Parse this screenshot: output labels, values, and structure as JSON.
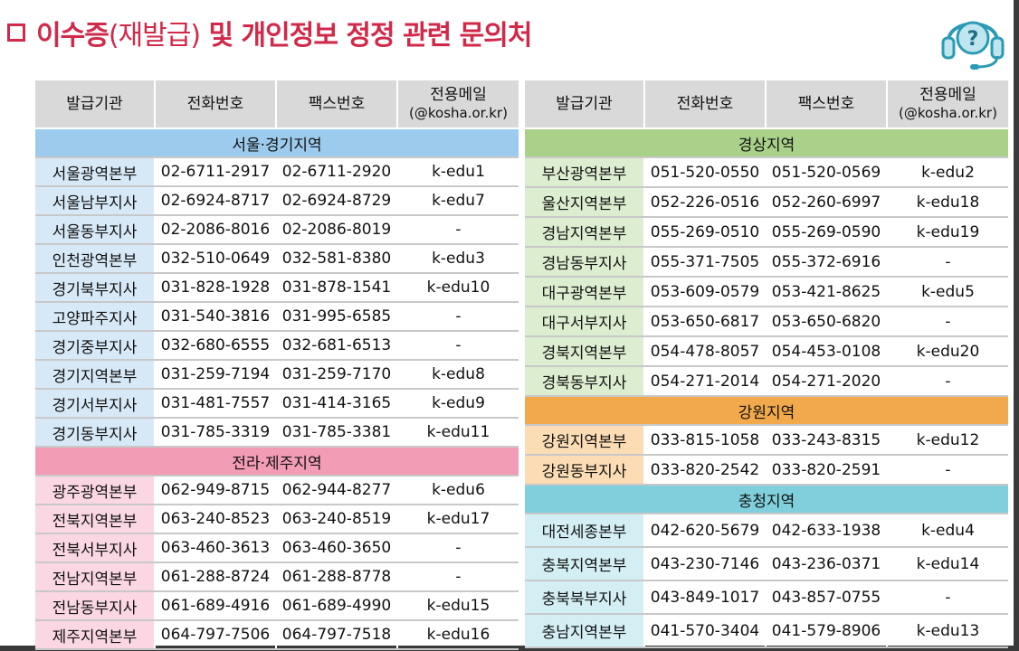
{
  "title": {
    "prefix": "이수증",
    "paren": "(재발급)",
    "suffix": " 및 개인정보 정정 관련 문의처"
  },
  "icon": "headset-help-icon",
  "headers": {
    "org": "발급기관",
    "phone": "전화번호",
    "fax": "팩스번호",
    "email_line1": "전용메일",
    "email_line2": "(@kosha.or.kr)"
  },
  "left": {
    "seoul": {
      "name": "서울·경기지역",
      "rows": [
        {
          "org": "서울광역본부",
          "phone": "02-6711-2917",
          "fax": "02-6711-2920",
          "email": "k-edu1"
        },
        {
          "org": "서울남부지사",
          "phone": "02-6924-8717",
          "fax": "02-6924-8729",
          "email": "k-edu7"
        },
        {
          "org": "서울동부지사",
          "phone": "02-2086-8016",
          "fax": "02-2086-8019",
          "email": "-"
        },
        {
          "org": "인천광역본부",
          "phone": "032-510-0649",
          "fax": "032-581-8380",
          "email": "k-edu3"
        },
        {
          "org": "경기북부지사",
          "phone": "031-828-1928",
          "fax": "031-878-1541",
          "email": "k-edu10"
        },
        {
          "org": "고양파주지사",
          "phone": "031-540-3816",
          "fax": "031-995-6585",
          "email": "-"
        },
        {
          "org": "경기중부지사",
          "phone": "032-680-6555",
          "fax": "032-681-6513",
          "email": "-"
        },
        {
          "org": "경기지역본부",
          "phone": "031-259-7194",
          "fax": "031-259-7170",
          "email": "k-edu8"
        },
        {
          "org": "경기서부지사",
          "phone": "031-481-7557",
          "fax": "031-414-3165",
          "email": "k-edu9"
        },
        {
          "org": "경기동부지사",
          "phone": "031-785-3319",
          "fax": "031-785-3381",
          "email": "k-edu11"
        }
      ]
    },
    "jeolla": {
      "name": "전라·제주지역",
      "rows": [
        {
          "org": "광주광역본부",
          "phone": "062-949-8715",
          "fax": "062-944-8277",
          "email": "k-edu6"
        },
        {
          "org": "전북지역본부",
          "phone": "063-240-8523",
          "fax": "063-240-8519",
          "email": "k-edu17"
        },
        {
          "org": "전북서부지사",
          "phone": "063-460-3613",
          "fax": "063-460-3650",
          "email": "-"
        },
        {
          "org": "전남지역본부",
          "phone": "061-288-8724",
          "fax": "061-288-8778",
          "email": "-"
        },
        {
          "org": "전남동부지사",
          "phone": "061-689-4916",
          "fax": "061-689-4990",
          "email": "k-edu15"
        },
        {
          "org": "제주지역본부",
          "phone": "064-797-7506",
          "fax": "064-797-7518",
          "email": "k-edu16"
        }
      ]
    }
  },
  "right": {
    "gyeongsang": {
      "name": "경상지역",
      "rows": [
        {
          "org": "부산광역본부",
          "phone": "051-520-0550",
          "fax": "051-520-0569",
          "email": "k-edu2"
        },
        {
          "org": "울산지역본부",
          "phone": "052-226-0516",
          "fax": "052-260-6997",
          "email": "k-edu18"
        },
        {
          "org": "경남지역본부",
          "phone": "055-269-0510",
          "fax": "055-269-0590",
          "email": "k-edu19"
        },
        {
          "org": "경남동부지사",
          "phone": "055-371-7505",
          "fax": "055-372-6916",
          "email": "-"
        },
        {
          "org": "대구광역본부",
          "phone": "053-609-0579",
          "fax": "053-421-8625",
          "email": "k-edu5"
        },
        {
          "org": "대구서부지사",
          "phone": "053-650-6817",
          "fax": "053-650-6820",
          "email": "-"
        },
        {
          "org": "경북지역본부",
          "phone": "054-478-8057",
          "fax": "054-453-0108",
          "email": "k-edu20"
        },
        {
          "org": "경북동부지사",
          "phone": "054-271-2014",
          "fax": "054-271-2020",
          "email": "-"
        }
      ]
    },
    "gangwon": {
      "name": "강원지역",
      "rows": [
        {
          "org": "강원지역본부",
          "phone": "033-815-1058",
          "fax": "033-243-8315",
          "email": "k-edu12"
        },
        {
          "org": "강원동부지사",
          "phone": "033-820-2542",
          "fax": "033-820-2591",
          "email": "-"
        }
      ]
    },
    "chungcheong": {
      "name": "충청지역",
      "rows": [
        {
          "org": "대전세종본부",
          "phone": "042-620-5679",
          "fax": "042-633-1938",
          "email": "k-edu4"
        },
        {
          "org": "충북지역본부",
          "phone": "043-230-7146",
          "fax": "043-236-0371",
          "email": "k-edu14"
        },
        {
          "org": "충북북부지사",
          "phone": "043-849-1017",
          "fax": "043-857-0755",
          "email": "-"
        },
        {
          "org": "충남지역본부",
          "phone": "041-570-3404",
          "fax": "041-579-8906",
          "email": "k-edu13"
        }
      ]
    }
  }
}
